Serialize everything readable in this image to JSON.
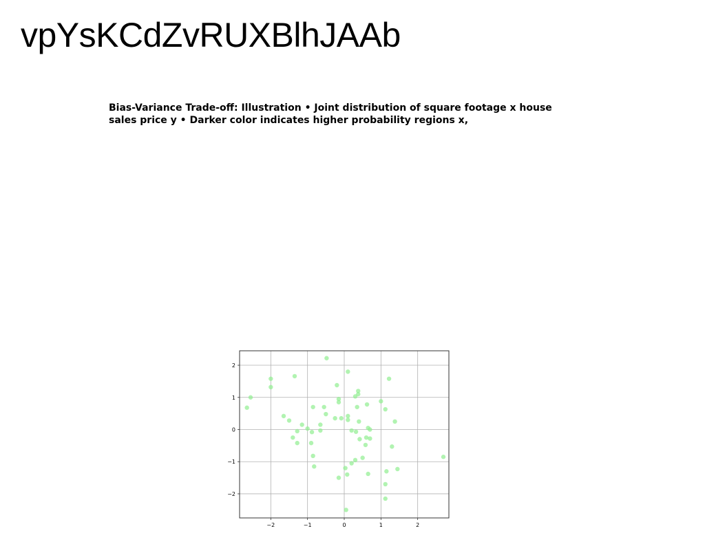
{
  "page": {
    "heading": "vpYsKCdZvRUXBlhJAAb",
    "slide_text": "Bias-Variance Trade-off: Illustration • Joint distribution of square footage x house sales price y • Darker color indicates higher probability regions x,"
  },
  "colors": {
    "point": "#90ee90",
    "frame": "#333333",
    "grid": "#b0b0b0",
    "text": "#000000"
  },
  "chart_data": {
    "type": "scatter",
    "title": "",
    "xlabel": "",
    "ylabel": "",
    "xlim": [
      -2.85,
      2.85
    ],
    "ylim": [
      -2.75,
      2.45
    ],
    "xticks": [
      -2,
      -1,
      0,
      1,
      2
    ],
    "yticks": [
      -2,
      -1,
      0,
      1,
      2
    ],
    "xtick_labels": [
      "−2",
      "−1",
      "0",
      "1",
      "2"
    ],
    "ytick_labels": [
      "−2",
      "−1",
      "0",
      "1",
      "2"
    ],
    "grid": true,
    "legend": "none",
    "series": [
      {
        "color": "#90ee90",
        "points": [
          [
            -2.55,
            1.0
          ],
          [
            -2.65,
            0.68
          ],
          [
            -2.0,
            1.58
          ],
          [
            -2.0,
            1.32
          ],
          [
            -1.35,
            1.66
          ],
          [
            -1.65,
            0.42
          ],
          [
            -1.5,
            0.28
          ],
          [
            -1.15,
            0.15
          ],
          [
            -1.4,
            -0.25
          ],
          [
            -1.28,
            -0.05
          ],
          [
            -1.28,
            -0.42
          ],
          [
            -1.0,
            0.03
          ],
          [
            -0.88,
            -0.08
          ],
          [
            -0.9,
            -0.42
          ],
          [
            -0.85,
            -0.82
          ],
          [
            -0.82,
            -1.15
          ],
          [
            -0.85,
            0.7
          ],
          [
            -0.55,
            0.7
          ],
          [
            -0.5,
            0.48
          ],
          [
            -0.65,
            0.15
          ],
          [
            -0.65,
            -0.03
          ],
          [
            -0.25,
            0.35
          ],
          [
            -0.48,
            2.22
          ],
          [
            -0.2,
            1.38
          ],
          [
            -0.15,
            0.95
          ],
          [
            -0.15,
            0.85
          ],
          [
            -0.08,
            0.35
          ],
          [
            0.1,
            0.42
          ],
          [
            0.1,
            0.3
          ],
          [
            0.1,
            1.8
          ],
          [
            0.2,
            -0.03
          ],
          [
            0.32,
            -0.07
          ],
          [
            0.4,
            0.25
          ],
          [
            0.42,
            -0.3
          ],
          [
            0.3,
            1.03
          ],
          [
            0.38,
            1.2
          ],
          [
            0.38,
            1.1
          ],
          [
            0.35,
            0.7
          ],
          [
            0.62,
            0.78
          ],
          [
            0.65,
            0.05
          ],
          [
            0.6,
            -0.25
          ],
          [
            0.7,
            0.0
          ],
          [
            0.7,
            -0.28
          ],
          [
            0.58,
            -0.48
          ],
          [
            0.5,
            -0.88
          ],
          [
            0.3,
            -0.95
          ],
          [
            0.2,
            -1.05
          ],
          [
            0.03,
            -1.2
          ],
          [
            -0.15,
            -1.5
          ],
          [
            0.08,
            -1.4
          ],
          [
            0.05,
            -2.5
          ],
          [
            0.65,
            -1.38
          ],
          [
            1.0,
            0.88
          ],
          [
            1.12,
            0.63
          ],
          [
            1.22,
            1.58
          ],
          [
            1.38,
            0.25
          ],
          [
            1.3,
            -0.53
          ],
          [
            1.15,
            -1.3
          ],
          [
            1.12,
            -1.7
          ],
          [
            1.45,
            -1.23
          ],
          [
            1.12,
            -2.15
          ],
          [
            2.7,
            -0.85
          ]
        ]
      }
    ]
  }
}
